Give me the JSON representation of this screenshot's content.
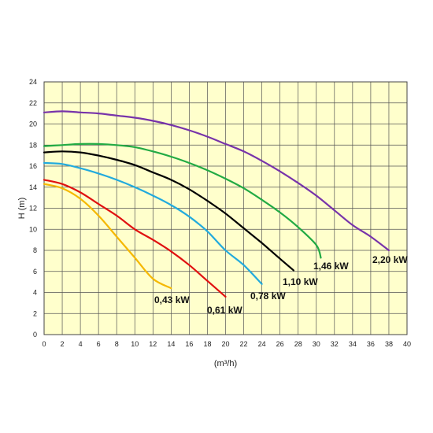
{
  "chart_data": {
    "type": "line",
    "title": "",
    "xlabel": "(m³/h)",
    "ylabel": "H (m)",
    "xlim": [
      0,
      40
    ],
    "ylim": [
      0,
      24
    ],
    "x_ticks": [
      "0",
      "2",
      "4",
      "6",
      "8",
      "10",
      "12",
      "14",
      "16",
      "18",
      "20",
      "22",
      "24",
      "26",
      "28",
      "30",
      "32",
      "34",
      "36",
      "38",
      "40"
    ],
    "y_ticks": [
      "0",
      "2",
      "4",
      "6",
      "8",
      "10",
      "12",
      "14",
      "16",
      "18",
      "20",
      "22",
      "24"
    ],
    "grid": true,
    "background": "#ffffcc",
    "series": [
      {
        "name": "0,43 kW",
        "color": "#f5b800",
        "x": [
          0,
          2,
          4,
          6,
          8,
          10,
          12,
          14
        ],
        "y": [
          14.3,
          13.9,
          12.9,
          11.3,
          9.3,
          7.3,
          5.3,
          4.4
        ]
      },
      {
        "name": "0,61 kW",
        "color": "#e01010",
        "x": [
          0,
          2,
          4,
          6,
          8,
          10,
          12,
          14,
          16,
          18,
          20
        ],
        "y": [
          14.7,
          14.3,
          13.5,
          12.4,
          11.3,
          10.0,
          9.0,
          7.9,
          6.6,
          5.1,
          3.6
        ]
      },
      {
        "name": "0,78 kW",
        "color": "#22aadd",
        "x": [
          0,
          2,
          4,
          6,
          8,
          10,
          12,
          14,
          16,
          18,
          20,
          22,
          24
        ],
        "y": [
          16.3,
          16.2,
          15.8,
          15.3,
          14.7,
          14.0,
          13.2,
          12.3,
          11.2,
          9.8,
          8.0,
          6.6,
          4.8
        ]
      },
      {
        "name": "1,10 kW",
        "color": "#000000",
        "x": [
          0,
          2,
          4,
          6,
          8,
          10,
          12,
          14,
          16,
          18,
          20,
          22,
          24,
          26,
          27.5
        ],
        "y": [
          17.3,
          17.4,
          17.3,
          17.0,
          16.6,
          16.1,
          15.4,
          14.7,
          13.8,
          12.7,
          11.5,
          10.1,
          8.7,
          7.2,
          6.1
        ]
      },
      {
        "name": "1,46 kW",
        "color": "#22aa44",
        "x": [
          0,
          2,
          4,
          6,
          8,
          10,
          12,
          14,
          16,
          18,
          20,
          22,
          24,
          26,
          28,
          30,
          30.5
        ],
        "y": [
          17.9,
          18.0,
          18.1,
          18.1,
          18.0,
          17.8,
          17.4,
          16.9,
          16.3,
          15.6,
          14.8,
          13.9,
          12.8,
          11.6,
          10.2,
          8.5,
          7.3
        ]
      },
      {
        "name": "2,20 kW",
        "color": "#7733aa",
        "x": [
          0,
          2,
          4,
          6,
          8,
          10,
          12,
          14,
          16,
          18,
          20,
          22,
          24,
          26,
          28,
          30,
          32,
          34,
          36,
          38
        ],
        "y": [
          21.1,
          21.2,
          21.1,
          21.0,
          20.8,
          20.6,
          20.3,
          19.9,
          19.4,
          18.8,
          18.1,
          17.4,
          16.5,
          15.5,
          14.4,
          13.2,
          11.8,
          10.4,
          9.3,
          8.0
        ]
      }
    ]
  }
}
